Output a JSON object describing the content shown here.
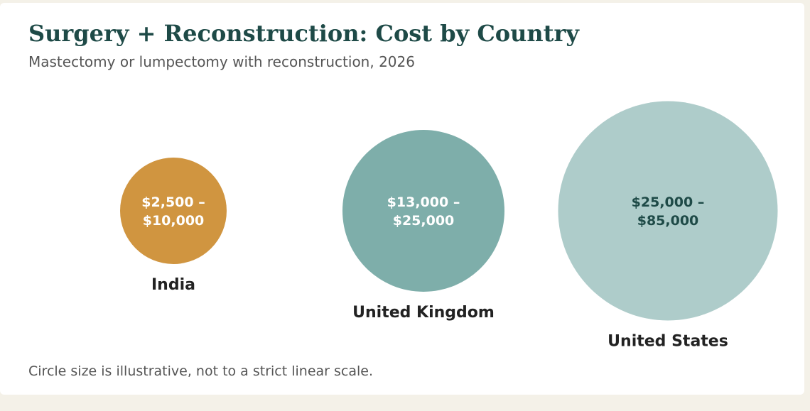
{
  "header": {
    "title": "Surgery + Reconstruction: Cost by Country",
    "subtitle": "Mastectomy or lumpectomy with reconstruction, 2026"
  },
  "footnote": "Circle size is illustrative, not to a strict linear scale.",
  "chart_data": {
    "type": "bubble",
    "title": "Surgery + Reconstruction: Cost by Country",
    "subtitle": "Mastectomy or lumpectomy with reconstruction, 2026",
    "categories": [
      "India",
      "United Kingdom",
      "United States"
    ],
    "series": [
      {
        "values": [
          {
            "country": "India",
            "min": 2500,
            "max": 10000,
            "range_label_line1": "$2,500 –",
            "range_label_line2": "$10,000",
            "color": "#d09540",
            "text_color": "#ffffff",
            "relative_size": 1.0
          },
          {
            "country": "United Kingdom",
            "min": 13000,
            "max": 25000,
            "range_label_line1": "$13,000 –",
            "range_label_line2": "$25,000",
            "color": "#7eaeaa",
            "text_color": "#ffffff",
            "relative_size": 1.52
          },
          {
            "country": "United States",
            "min": 25000,
            "max": 85000,
            "range_label_line1": "$25,000 –",
            "range_label_line2": "$85,000",
            "color": "#aeccca",
            "text_color": "#1e4a47",
            "relative_size": 2.06
          }
        ]
      }
    ]
  }
}
